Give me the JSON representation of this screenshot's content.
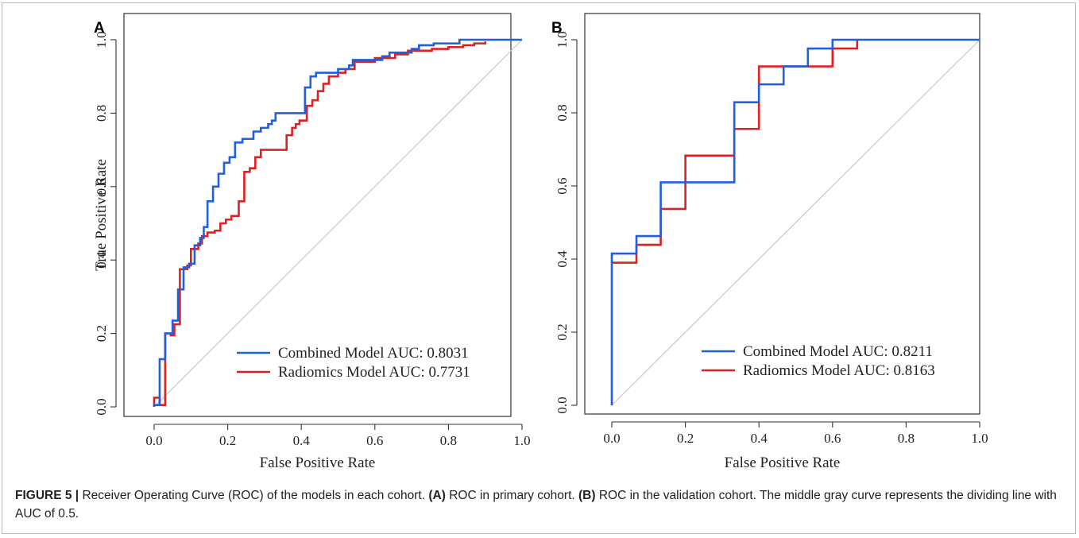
{
  "chart_data": [
    {
      "type": "line",
      "panel_label": "A",
      "xlabel": "False Positive Rate",
      "ylabel": "True Positive Rate",
      "xlim": [
        0,
        1
      ],
      "ylim": [
        0,
        1
      ],
      "xticks": [
        "0.0",
        "0.2",
        "0.4",
        "0.6",
        "0.8",
        "1.0"
      ],
      "yticks": [
        "0.0",
        "0.2",
        "0.4",
        "0.6",
        "0.8",
        "1.0"
      ],
      "diagonal": true,
      "legend_position": "bottom-right",
      "series": [
        {
          "name": "Combined Model AUC: 0.8031",
          "color": "#1f5fe0",
          "points": [
            [
              0,
              0
            ],
            [
              0,
              0.005
            ],
            [
              0.015,
              0.005
            ],
            [
              0.015,
              0.13
            ],
            [
              0.03,
              0.13
            ],
            [
              0.03,
              0.2
            ],
            [
              0.05,
              0.2
            ],
            [
              0.05,
              0.235
            ],
            [
              0.065,
              0.235
            ],
            [
              0.065,
              0.32
            ],
            [
              0.08,
              0.32
            ],
            [
              0.08,
              0.38
            ],
            [
              0.095,
              0.38
            ],
            [
              0.095,
              0.39
            ],
            [
              0.11,
              0.39
            ],
            [
              0.11,
              0.44
            ],
            [
              0.125,
              0.44
            ],
            [
              0.125,
              0.46
            ],
            [
              0.135,
              0.46
            ],
            [
              0.135,
              0.49
            ],
            [
              0.145,
              0.49
            ],
            [
              0.145,
              0.56
            ],
            [
              0.16,
              0.56
            ],
            [
              0.16,
              0.6
            ],
            [
              0.175,
              0.6
            ],
            [
              0.175,
              0.635
            ],
            [
              0.19,
              0.635
            ],
            [
              0.19,
              0.665
            ],
            [
              0.205,
              0.665
            ],
            [
              0.205,
              0.68
            ],
            [
              0.22,
              0.68
            ],
            [
              0.22,
              0.72
            ],
            [
              0.24,
              0.72
            ],
            [
              0.24,
              0.73
            ],
            [
              0.27,
              0.73
            ],
            [
              0.27,
              0.75
            ],
            [
              0.29,
              0.75
            ],
            [
              0.29,
              0.76
            ],
            [
              0.31,
              0.76
            ],
            [
              0.31,
              0.77
            ],
            [
              0.32,
              0.77
            ],
            [
              0.32,
              0.78
            ],
            [
              0.33,
              0.78
            ],
            [
              0.33,
              0.8
            ],
            [
              0.41,
              0.8
            ],
            [
              0.41,
              0.87
            ],
            [
              0.425,
              0.87
            ],
            [
              0.425,
              0.9
            ],
            [
              0.44,
              0.9
            ],
            [
              0.44,
              0.91
            ],
            [
              0.5,
              0.91
            ],
            [
              0.5,
              0.92
            ],
            [
              0.53,
              0.92
            ],
            [
              0.53,
              0.93
            ],
            [
              0.54,
              0.93
            ],
            [
              0.54,
              0.945
            ],
            [
              0.62,
              0.945
            ],
            [
              0.62,
              0.955
            ],
            [
              0.64,
              0.955
            ],
            [
              0.64,
              0.965
            ],
            [
              0.7,
              0.965
            ],
            [
              0.7,
              0.975
            ],
            [
              0.72,
              0.975
            ],
            [
              0.72,
              0.985
            ],
            [
              0.76,
              0.985
            ],
            [
              0.76,
              0.99
            ],
            [
              0.83,
              0.99
            ],
            [
              0.83,
              1.0
            ],
            [
              1.0,
              1.0
            ]
          ]
        },
        {
          "name": "Radiomics Model AUC: 0.7731",
          "color": "#e02020",
          "points": [
            [
              0,
              0
            ],
            [
              0,
              0.025
            ],
            [
              0.015,
              0.025
            ],
            [
              0.015,
              0.005
            ],
            [
              0.03,
              0.005
            ],
            [
              0.03,
              0.2
            ],
            [
              0.045,
              0.2
            ],
            [
              0.045,
              0.195
            ],
            [
              0.055,
              0.195
            ],
            [
              0.055,
              0.225
            ],
            [
              0.07,
              0.225
            ],
            [
              0.07,
              0.375
            ],
            [
              0.09,
              0.375
            ],
            [
              0.09,
              0.385
            ],
            [
              0.1,
              0.385
            ],
            [
              0.1,
              0.43
            ],
            [
              0.12,
              0.43
            ],
            [
              0.12,
              0.445
            ],
            [
              0.13,
              0.445
            ],
            [
              0.13,
              0.465
            ],
            [
              0.145,
              0.465
            ],
            [
              0.145,
              0.475
            ],
            [
              0.165,
              0.475
            ],
            [
              0.165,
              0.48
            ],
            [
              0.18,
              0.48
            ],
            [
              0.18,
              0.5
            ],
            [
              0.195,
              0.5
            ],
            [
              0.195,
              0.51
            ],
            [
              0.21,
              0.51
            ],
            [
              0.21,
              0.52
            ],
            [
              0.23,
              0.52
            ],
            [
              0.23,
              0.56
            ],
            [
              0.245,
              0.56
            ],
            [
              0.245,
              0.64
            ],
            [
              0.26,
              0.64
            ],
            [
              0.26,
              0.65
            ],
            [
              0.275,
              0.65
            ],
            [
              0.275,
              0.68
            ],
            [
              0.29,
              0.68
            ],
            [
              0.29,
              0.7
            ],
            [
              0.36,
              0.7
            ],
            [
              0.36,
              0.74
            ],
            [
              0.375,
              0.74
            ],
            [
              0.375,
              0.76
            ],
            [
              0.385,
              0.76
            ],
            [
              0.385,
              0.77
            ],
            [
              0.395,
              0.77
            ],
            [
              0.395,
              0.78
            ],
            [
              0.415,
              0.78
            ],
            [
              0.415,
              0.82
            ],
            [
              0.43,
              0.82
            ],
            [
              0.43,
              0.835
            ],
            [
              0.445,
              0.835
            ],
            [
              0.445,
              0.86
            ],
            [
              0.46,
              0.86
            ],
            [
              0.46,
              0.88
            ],
            [
              0.475,
              0.88
            ],
            [
              0.475,
              0.9
            ],
            [
              0.5,
              0.9
            ],
            [
              0.5,
              0.91
            ],
            [
              0.52,
              0.91
            ],
            [
              0.52,
              0.92
            ],
            [
              0.545,
              0.92
            ],
            [
              0.545,
              0.94
            ],
            [
              0.6,
              0.94
            ],
            [
              0.6,
              0.95
            ],
            [
              0.655,
              0.95
            ],
            [
              0.655,
              0.96
            ],
            [
              0.69,
              0.96
            ],
            [
              0.69,
              0.97
            ],
            [
              0.755,
              0.97
            ],
            [
              0.755,
              0.975
            ],
            [
              0.8,
              0.975
            ],
            [
              0.8,
              0.98
            ],
            [
              0.84,
              0.98
            ],
            [
              0.84,
              0.985
            ],
            [
              0.87,
              0.985
            ],
            [
              0.87,
              0.99
            ],
            [
              0.9,
              0.99
            ],
            [
              0.9,
              0.995
            ]
          ]
        }
      ]
    },
    {
      "type": "line",
      "panel_label": "B",
      "xlabel": "False Positive Rate",
      "ylabel": "",
      "xlim": [
        0,
        1
      ],
      "ylim": [
        0,
        1
      ],
      "xticks": [
        "0.0",
        "0.2",
        "0.4",
        "0.6",
        "0.8",
        "1.0"
      ],
      "yticks": [
        "0.0",
        "0.2",
        "0.4",
        "0.6",
        "0.8",
        "1.0"
      ],
      "diagonal": true,
      "legend_position": "bottom-right",
      "series": [
        {
          "name": "Combined Model AUC: 0.8211",
          "color": "#1f5fe0",
          "points": [
            [
              0,
              0
            ],
            [
              0,
              0.415
            ],
            [
              0.067,
              0.415
            ],
            [
              0.067,
              0.463
            ],
            [
              0.133,
              0.463
            ],
            [
              0.133,
              0.61
            ],
            [
              0.333,
              0.61
            ],
            [
              0.333,
              0.829
            ],
            [
              0.4,
              0.829
            ],
            [
              0.4,
              0.878
            ],
            [
              0.467,
              0.878
            ],
            [
              0.467,
              0.927
            ],
            [
              0.533,
              0.927
            ],
            [
              0.533,
              0.976
            ],
            [
              0.6,
              0.976
            ],
            [
              0.6,
              1.0
            ],
            [
              1.0,
              1.0
            ]
          ]
        },
        {
          "name": "Radiomics Model AUC: 0.8163",
          "color": "#e02020",
          "points": [
            [
              0,
              0.39
            ],
            [
              0.067,
              0.39
            ],
            [
              0.067,
              0.439
            ],
            [
              0.133,
              0.439
            ],
            [
              0.133,
              0.537
            ],
            [
              0.2,
              0.537
            ],
            [
              0.2,
              0.683
            ],
            [
              0.333,
              0.683
            ],
            [
              0.333,
              0.756
            ],
            [
              0.4,
              0.756
            ],
            [
              0.4,
              0.927
            ],
            [
              0.6,
              0.927
            ],
            [
              0.6,
              0.976
            ],
            [
              0.667,
              0.976
            ],
            [
              0.667,
              1.0
            ]
          ]
        }
      ]
    }
  ],
  "caption": {
    "figure_label": "FIGURE 5 |",
    "text_1": " Receiver Operating Curve (ROC) of the models in each cohort. ",
    "label_a": "(A)",
    "text_2": " ROC in primary cohort. ",
    "label_b": "(B)",
    "text_3": " ROC in the validation cohort. The middle gray curve represents the dividing line with AUC of 0.5."
  }
}
